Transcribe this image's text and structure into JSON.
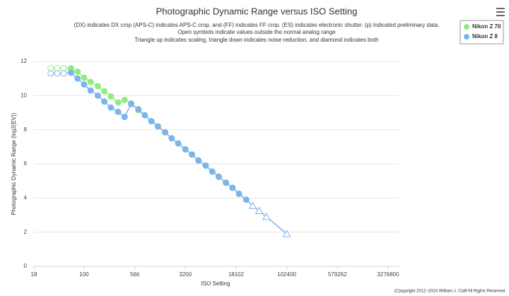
{
  "chart_data": {
    "type": "line",
    "title": "Photographic Dynamic Range versus ISO Setting",
    "subtitle": [
      "(DX) indicates DX crop (APS-C) indicates APS-C crop, and (FF) indicates FF crop. (ES) indicates electronic shutter. (p) indicated preliminary data.",
      "Open symbols indicate values outside the normal analog range",
      "Triangle up indicates scaling, triangle down indicates noise reduction, and diamond indicates both"
    ],
    "x_label": "ISO Setting",
    "y_label": "Photographic Dynamic Range (log2(EV))",
    "copyright": "(C)opyright 2012–2024 William J. Claff All Rights Reserved.",
    "x_log": true,
    "grid": true,
    "legend": "top-right",
    "xlim": [
      18,
      3276800
    ],
    "xticks": [
      18,
      100,
      566,
      3200,
      18102,
      102400,
      579262,
      3276800
    ],
    "ylim": [
      0,
      12
    ],
    "yticks": [
      0,
      2,
      4,
      6,
      8,
      10,
      12
    ],
    "series": [
      {
        "name": "Nikon Z 7II",
        "color": "#90ed7d",
        "x": [
          32,
          40,
          50,
          64,
          80,
          100,
          125,
          160,
          200,
          250,
          320,
          400,
          500,
          640,
          800,
          1000,
          1250,
          1600,
          2000,
          2500,
          3200,
          4000,
          5000,
          6400,
          8000,
          10000,
          12800,
          16000,
          20000,
          25600
        ],
        "values": [
          11.6,
          11.6,
          11.6,
          11.6,
          11.4,
          11.05,
          10.8,
          10.55,
          10.25,
          9.95,
          9.6,
          9.75,
          9.55,
          9.15,
          8.85,
          8.5,
          8.2,
          7.85,
          7.5,
          7.2,
          6.85,
          6.55,
          6.2,
          5.9,
          5.55,
          5.25,
          4.9,
          4.6,
          4.25,
          3.9
        ],
        "markers": [
          "open-circle",
          "open-circle",
          "open-circle",
          "circle",
          "circle",
          "circle",
          "circle",
          "circle",
          "circle",
          "circle",
          "circle",
          "circle",
          "circle",
          "circle",
          "circle",
          "circle",
          "circle",
          "circle",
          "circle",
          "circle",
          "circle",
          "circle",
          "circle",
          "circle",
          "circle",
          "circle",
          "circle",
          "circle",
          "circle",
          "circle"
        ]
      },
      {
        "name": "Nikon Z 8",
        "color": "#7cb5ec",
        "x": [
          32,
          40,
          50,
          64,
          80,
          100,
          125,
          160,
          200,
          250,
          320,
          400,
          500,
          640,
          800,
          1000,
          1250,
          1600,
          2000,
          2500,
          3200,
          4000,
          5000,
          6400,
          8000,
          10000,
          12800,
          16000,
          20000,
          25600,
          32000,
          40000,
          51200,
          102400
        ],
        "values": [
          11.3,
          11.3,
          11.3,
          11.35,
          11.0,
          10.65,
          10.3,
          10.0,
          9.65,
          9.3,
          9.05,
          8.75,
          9.5,
          9.2,
          8.85,
          8.5,
          8.2,
          7.85,
          7.5,
          7.2,
          6.85,
          6.55,
          6.2,
          5.9,
          5.55,
          5.25,
          4.9,
          4.6,
          4.25,
          3.9,
          3.55,
          3.25,
          2.9,
          1.9
        ],
        "markers": [
          "open-circle",
          "open-circle",
          "open-circle",
          "circle",
          "circle",
          "circle",
          "circle",
          "circle",
          "circle",
          "circle",
          "circle",
          "circle",
          "circle",
          "circle",
          "circle",
          "circle",
          "circle",
          "circle",
          "circle",
          "circle",
          "circle",
          "circle",
          "circle",
          "circle",
          "circle",
          "circle",
          "circle",
          "circle",
          "circle",
          "circle",
          "open-triangle",
          "open-triangle",
          "open-triangle",
          "open-triangle"
        ]
      }
    ]
  }
}
